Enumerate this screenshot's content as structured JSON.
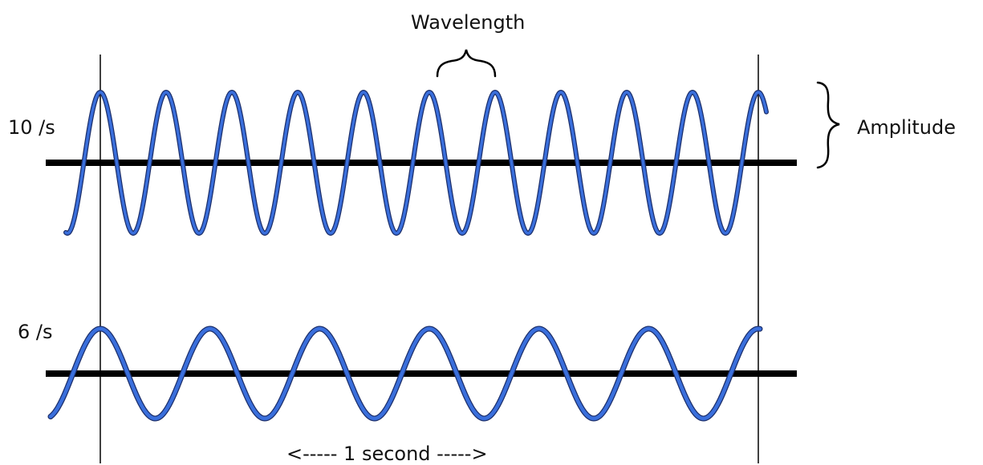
{
  "labels": {
    "wavelength": "Wavelength",
    "amplitude": "Amplitude",
    "duration": "<----- 1 second ----->"
  },
  "waves": [
    {
      "frequency_label": "10 /s",
      "cycles_per_second": 10
    },
    {
      "frequency_label": "6 /s",
      "cycles_per_second": 6
    }
  ],
  "colors": {
    "wave": "#3a6fdc",
    "wave_shadow": "#1c2f6b",
    "axis": "#000000",
    "marker": "#000000"
  }
}
